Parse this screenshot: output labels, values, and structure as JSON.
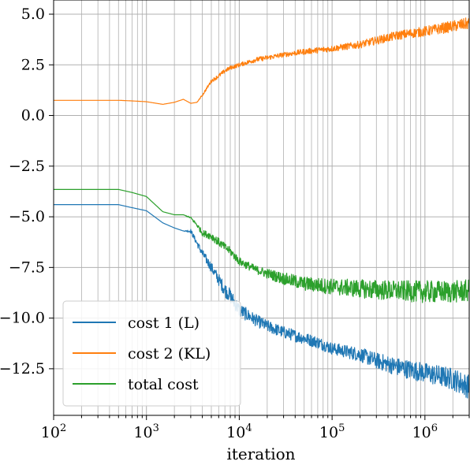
{
  "chart_data": {
    "type": "line",
    "title": "",
    "xlabel": "iteration",
    "ylabel": "",
    "xscale": "log",
    "xlim": [
      100,
      3000000
    ],
    "ylim": [
      -14.8,
      5.7
    ],
    "grid": true,
    "legend_position": "lower-left",
    "x_ticks": [
      {
        "value": 100,
        "base": "10",
        "exp": "2"
      },
      {
        "value": 1000,
        "base": "10",
        "exp": "3"
      },
      {
        "value": 10000,
        "base": "10",
        "exp": "4"
      },
      {
        "value": 100000,
        "base": "10",
        "exp": "5"
      },
      {
        "value": 1000000,
        "base": "10",
        "exp": "6"
      }
    ],
    "y_ticks": [
      {
        "value": 5.0,
        "label": "5.0"
      },
      {
        "value": 2.5,
        "label": "2.5"
      },
      {
        "value": 0.0,
        "label": "0.0"
      },
      {
        "value": -2.5,
        "label": "−2.5"
      },
      {
        "value": -5.0,
        "label": "−5.0"
      },
      {
        "value": -7.5,
        "label": "−7.5"
      },
      {
        "value": -10.0,
        "label": "−10.0"
      },
      {
        "value": -12.5,
        "label": "−12.5"
      }
    ],
    "series": [
      {
        "name": "cost 1 (L)",
        "color": "#1f77b4",
        "x": [
          100,
          300,
          500,
          700,
          1000,
          1500,
          2000,
          2500,
          3000,
          3500,
          4000,
          5000,
          6000,
          7000,
          8000,
          10000,
          15000,
          20000,
          30000,
          50000,
          70000,
          100000,
          200000,
          300000,
          500000,
          1000000,
          2000000,
          3000000
        ],
        "y": [
          -4.4,
          -4.4,
          -4.4,
          -4.55,
          -4.7,
          -5.3,
          -5.55,
          -5.7,
          -5.7,
          -6.3,
          -6.8,
          -7.5,
          -8.1,
          -8.6,
          -8.9,
          -9.6,
          -10.1,
          -10.4,
          -10.7,
          -11.0,
          -11.2,
          -11.5,
          -11.8,
          -12.1,
          -12.4,
          -12.7,
          -13.0,
          -13.4
        ],
        "noise": [
          0,
          0,
          0,
          0,
          0,
          0,
          0,
          0,
          0.1,
          0.15,
          0.2,
          0.25,
          0.3,
          0.35,
          0.35,
          0.35,
          0.3,
          0.3,
          0.3,
          0.3,
          0.3,
          0.3,
          0.35,
          0.4,
          0.45,
          0.5,
          0.55,
          0.6
        ]
      },
      {
        "name": "cost 2 (KL)",
        "color": "#ff7f0e",
        "x": [
          100,
          300,
          500,
          700,
          1000,
          1500,
          2000,
          2500,
          3000,
          3500,
          4000,
          5000,
          6000,
          7000,
          8000,
          10000,
          15000,
          20000,
          30000,
          50000,
          100000,
          200000,
          300000,
          500000,
          1000000,
          2000000,
          3000000
        ],
        "y": [
          0.75,
          0.75,
          0.75,
          0.72,
          0.68,
          0.55,
          0.65,
          0.8,
          0.6,
          0.65,
          1.0,
          1.7,
          1.95,
          2.2,
          2.35,
          2.5,
          2.75,
          2.85,
          3.0,
          3.15,
          3.3,
          3.5,
          3.7,
          3.95,
          4.15,
          4.4,
          4.55
        ],
        "noise": [
          0,
          0,
          0,
          0,
          0,
          0,
          0,
          0,
          0,
          0,
          0.05,
          0.08,
          0.1,
          0.1,
          0.1,
          0.1,
          0.12,
          0.12,
          0.12,
          0.14,
          0.15,
          0.18,
          0.2,
          0.22,
          0.25,
          0.28,
          0.3
        ]
      },
      {
        "name": "total cost",
        "color": "#2ca02c",
        "x": [
          100,
          300,
          500,
          700,
          1000,
          1500,
          2000,
          2500,
          3000,
          3500,
          4000,
          5000,
          6000,
          7000,
          8000,
          10000,
          15000,
          20000,
          30000,
          50000,
          100000,
          200000,
          300000,
          500000,
          1000000,
          2000000,
          3000000
        ],
        "y": [
          -3.65,
          -3.65,
          -3.65,
          -3.8,
          -4.0,
          -4.75,
          -4.9,
          -4.9,
          -5.05,
          -5.4,
          -5.8,
          -5.95,
          -6.25,
          -6.5,
          -6.7,
          -7.2,
          -7.6,
          -7.8,
          -8.05,
          -8.3,
          -8.45,
          -8.55,
          -8.6,
          -8.65,
          -8.7,
          -8.7,
          -8.65
        ],
        "noise": [
          0,
          0,
          0,
          0,
          0,
          0,
          0,
          0,
          0.05,
          0.1,
          0.15,
          0.2,
          0.2,
          0.2,
          0.2,
          0.2,
          0.2,
          0.25,
          0.3,
          0.35,
          0.4,
          0.45,
          0.5,
          0.5,
          0.55,
          0.55,
          0.55
        ]
      }
    ]
  },
  "legend": {
    "items": [
      {
        "label": "cost 1 (L)",
        "color": "#1f77b4"
      },
      {
        "label": "cost 2 (KL)",
        "color": "#ff7f0e"
      },
      {
        "label": "total cost",
        "color": "#2ca02c"
      }
    ]
  }
}
